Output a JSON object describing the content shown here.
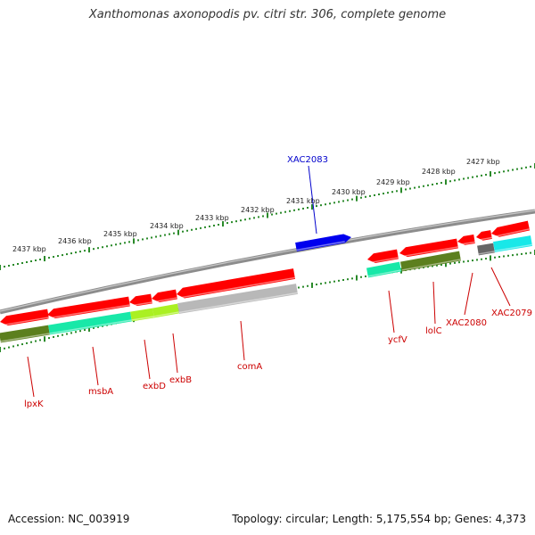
{
  "title": "Xanthomonas axonopodis pv. citri str. 306, complete genome",
  "footer": {
    "accession": "Accession: NC_003919",
    "summary": "Topology: circular; Length: 5,175,554 bp; Genes: 4,373"
  },
  "colors": {
    "backbone": "#8c8c8c",
    "tick": "#2a8a2a",
    "label_red": "#cc0000",
    "label_blue": "#0000cc",
    "red_gene": "#ff0000",
    "blue_gene": "#0000ee",
    "green_gene": "#5c7f1e",
    "aqua_gene": "#18e8a8",
    "lime_gene": "#aaf022",
    "gray_gene": "#b8b8b8",
    "cyan_gene": "#18e8e8",
    "darkgray_gene": "#666666"
  },
  "kbp_labels": [
    "2437 kbp",
    "2436 kbp",
    "2435 kbp",
    "2434 kbp",
    "2433 kbp",
    "2432 kbp",
    "2431 kbp",
    "2430 kbp",
    "2429 kbp",
    "2428 kbp",
    "2427 kbp"
  ],
  "gene_labels": [
    {
      "name": "XAC2083",
      "color": "blue"
    },
    {
      "name": "lpxK",
      "color": "red"
    },
    {
      "name": "msbA",
      "color": "red"
    },
    {
      "name": "exbD",
      "color": "red"
    },
    {
      "name": "exbB",
      "color": "red"
    },
    {
      "name": "comA",
      "color": "red"
    },
    {
      "name": "ycfV",
      "color": "red"
    },
    {
      "name": "lolC",
      "color": "red"
    },
    {
      "name": "XAC2080",
      "color": "red"
    },
    {
      "name": "XAC2079",
      "color": "red"
    }
  ]
}
